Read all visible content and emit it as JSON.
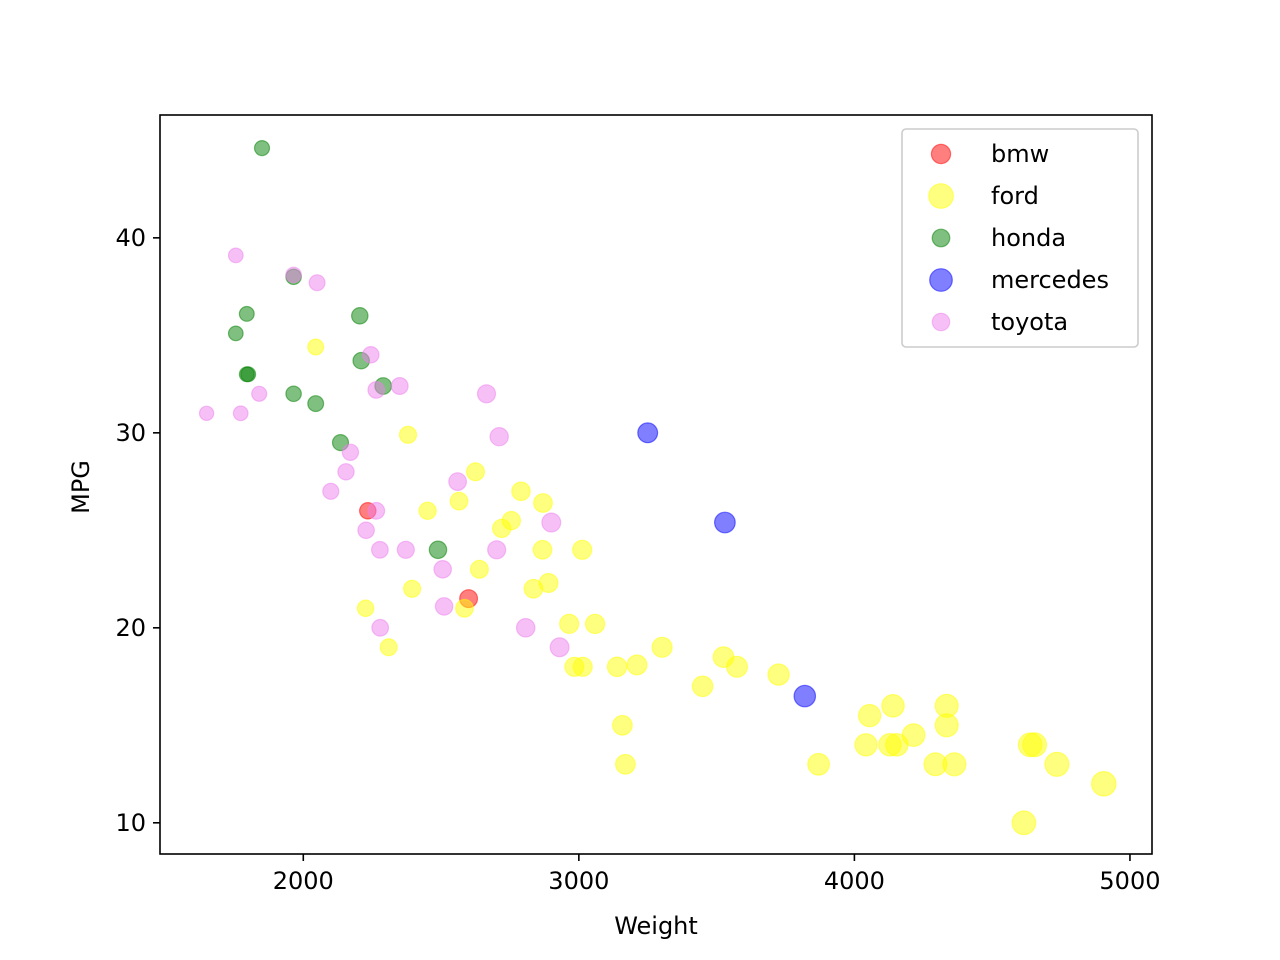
{
  "chart_data": {
    "type": "scatter",
    "title": "",
    "xlabel": "Weight",
    "ylabel": "MPG",
    "xlim": [
      1480,
      5080
    ],
    "ylim": [
      8.4,
      46.3
    ],
    "xticks": [
      2000,
      3000,
      4000,
      5000
    ],
    "yticks": [
      10,
      20,
      30,
      40
    ],
    "grid": false,
    "legend_position": "top-right",
    "size_encodes": "Weight",
    "alpha": 0.5,
    "series": [
      {
        "name": "bmw",
        "color": "#ff0000",
        "points": [
          [
            2234,
            26.0
          ],
          [
            2600,
            21.5
          ]
        ]
      },
      {
        "name": "ford",
        "color": "#ffff00",
        "points": [
          [
            4905,
            12.0
          ],
          [
            4735,
            13.0
          ],
          [
            4654,
            14.0
          ],
          [
            4638,
            14.0
          ],
          [
            4615,
            10.0
          ],
          [
            4363,
            13.0
          ],
          [
            4335,
            15.0
          ],
          [
            4335,
            16.0
          ],
          [
            4294,
            13.0
          ],
          [
            4215,
            14.5
          ],
          [
            4140,
            16.0
          ],
          [
            4154,
            14.0
          ],
          [
            4129,
            14.0
          ],
          [
            4055,
            15.5
          ],
          [
            4042,
            14.0
          ],
          [
            3870,
            13.0
          ],
          [
            3725,
            17.6
          ],
          [
            3574,
            18.0
          ],
          [
            3525,
            18.5
          ],
          [
            3449,
            17.0
          ],
          [
            3302,
            19.0
          ],
          [
            3211,
            18.1
          ],
          [
            3169,
            13.0
          ],
          [
            3158,
            15.0
          ],
          [
            3139,
            18.0
          ],
          [
            3059,
            20.2
          ],
          [
            3014,
            18.0
          ],
          [
            3012,
            24.0
          ],
          [
            2984,
            18.0
          ],
          [
            2965,
            20.2
          ],
          [
            2890,
            22.3
          ],
          [
            2868,
            24.0
          ],
          [
            2870,
            26.4
          ],
          [
            2835,
            22.0
          ],
          [
            2790,
            27.0
          ],
          [
            2755,
            25.5
          ],
          [
            2720,
            25.1
          ],
          [
            2639,
            23.0
          ],
          [
            2625,
            28.0
          ],
          [
            2585,
            21.0
          ],
          [
            2565,
            26.5
          ],
          [
            2451,
            26.0
          ],
          [
            2395,
            22.0
          ],
          [
            2380,
            29.9
          ],
          [
            2310,
            19.0
          ],
          [
            2226,
            21.0
          ],
          [
            2045,
            34.4
          ]
        ]
      },
      {
        "name": "honda",
        "color": "#008000",
        "points": [
          [
            1850,
            44.6
          ],
          [
            1965,
            38.0
          ],
          [
            2205,
            36.0
          ],
          [
            1795,
            36.1
          ],
          [
            1755,
            35.1
          ],
          [
            2210,
            33.7
          ],
          [
            1800,
            33.0
          ],
          [
            1795,
            33.0
          ],
          [
            2290,
            32.4
          ],
          [
            1965,
            32.0
          ],
          [
            2045,
            31.5
          ],
          [
            2135,
            29.5
          ],
          [
            2489,
            24.0
          ]
        ]
      },
      {
        "name": "mercedes",
        "color": "#0000ff",
        "points": [
          [
            3250,
            30.0
          ],
          [
            3530,
            25.4
          ],
          [
            3820,
            16.5
          ]
        ]
      },
      {
        "name": "toyota",
        "color": "#ee82ee",
        "points": [
          [
            1755,
            39.1
          ],
          [
            1965,
            38.1
          ],
          [
            2050,
            37.7
          ],
          [
            2245,
            34.0
          ],
          [
            2350,
            32.4
          ],
          [
            2265,
            32.2
          ],
          [
            1840,
            32.0
          ],
          [
            2665,
            32.0
          ],
          [
            1649,
            31.0
          ],
          [
            1773,
            31.0
          ],
          [
            2711,
            29.8
          ],
          [
            2171,
            29.0
          ],
          [
            2155,
            28.0
          ],
          [
            2560,
            27.5
          ],
          [
            2100,
            27.0
          ],
          [
            2265,
            26.0
          ],
          [
            2900,
            25.4
          ],
          [
            2228,
            25.0
          ],
          [
            2278,
            24.0
          ],
          [
            2372,
            24.0
          ],
          [
            2702,
            24.0
          ],
          [
            2506,
            23.0
          ],
          [
            2511,
            21.1
          ],
          [
            2279,
            20.0
          ],
          [
            2807,
            20.0
          ],
          [
            2930,
            19.0
          ]
        ]
      }
    ]
  }
}
